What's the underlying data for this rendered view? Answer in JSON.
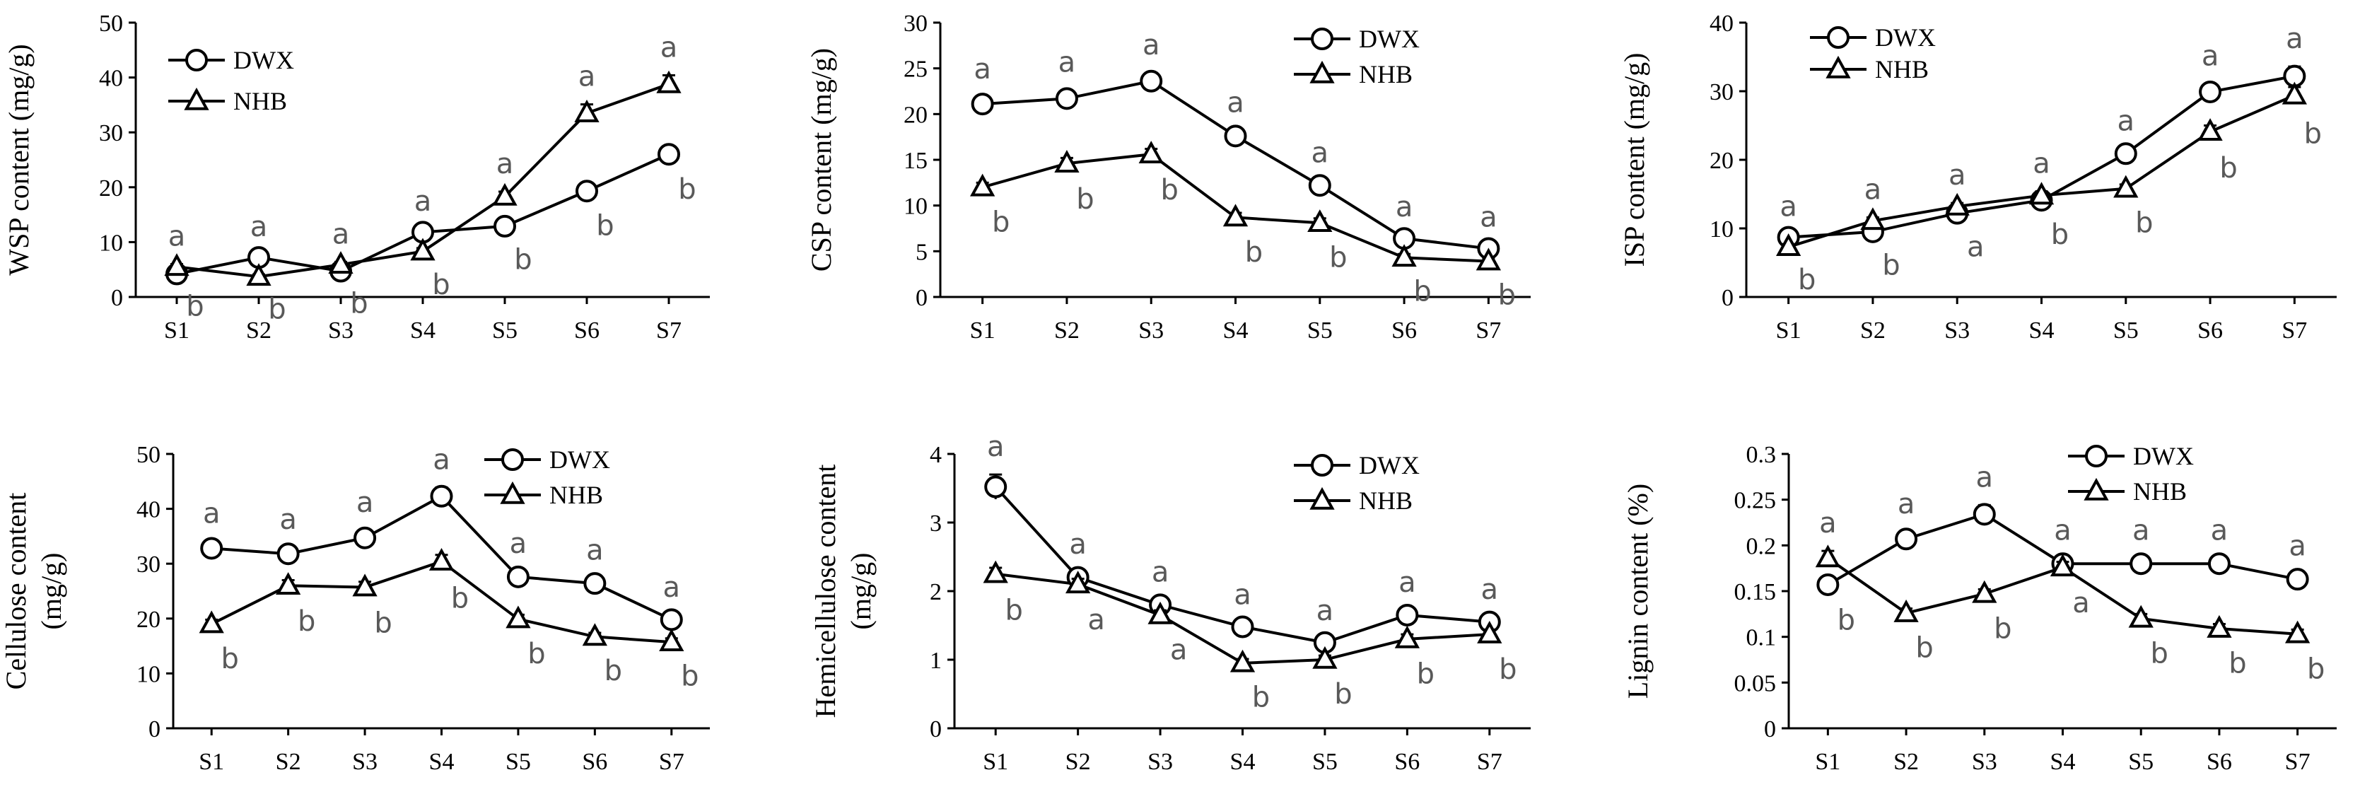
{
  "chart_data": [
    {
      "type": "line",
      "ylabel": "WSP content (mg/g)",
      "categories": [
        "S1",
        "S2",
        "S3",
        "S4",
        "S5",
        "S6",
        "S7"
      ],
      "ylim": [
        0,
        50
      ],
      "yticks": [
        "0",
        "10",
        "20",
        "30",
        "40",
        "50"
      ],
      "legend_position": "top-left",
      "series": [
        {
          "name": "DWX",
          "marker": "circle",
          "values": [
            4.2,
            7.2,
            4.7,
            11.8,
            12.9,
            19.3,
            26.0
          ],
          "errors": [
            0.4,
            0.5,
            0.4,
            0.6,
            0.6,
            0.8,
            0.9
          ],
          "sig": [
            "b",
            "a",
            "b",
            "a",
            "b",
            "b",
            "b"
          ]
        },
        {
          "name": "NHB",
          "marker": "triangle",
          "values": [
            5.5,
            3.7,
            5.9,
            8.3,
            18.3,
            33.5,
            38.8
          ],
          "errors": [
            0.5,
            0.4,
            0.5,
            0.6,
            0.9,
            1.6,
            1.6
          ],
          "sig": [
            "a",
            "b",
            "a",
            "b",
            "a",
            "a",
            "a"
          ]
        }
      ]
    },
    {
      "type": "line",
      "ylabel": "CSP content (mg/g)",
      "categories": [
        "S1",
        "S2",
        "S3",
        "S4",
        "S5",
        "S6",
        "S7"
      ],
      "ylim": [
        0,
        30
      ],
      "yticks": [
        "0",
        "5",
        "10",
        "15",
        "20",
        "25",
        "30"
      ],
      "legend_position": "top-right",
      "series": [
        {
          "name": "DWX",
          "marker": "circle",
          "values": [
            21.1,
            21.7,
            23.6,
            17.6,
            12.2,
            6.4,
            5.3
          ],
          "errors": [
            0.8,
            0.9,
            0.9,
            0.6,
            0.5,
            0.4,
            0.4
          ],
          "sig": [
            "a",
            "a",
            "a",
            "a",
            "a",
            "a",
            "a"
          ]
        },
        {
          "name": "NHB",
          "marker": "triangle",
          "values": [
            12.0,
            14.6,
            15.6,
            8.7,
            8.1,
            4.3,
            3.9
          ],
          "errors": [
            0.5,
            0.6,
            0.6,
            0.5,
            0.5,
            0.4,
            0.4
          ],
          "sig": [
            "b",
            "b",
            "b",
            "b",
            "b",
            "b",
            "b"
          ]
        }
      ]
    },
    {
      "type": "line",
      "ylabel": "ISP content (mg/g)",
      "categories": [
        "S1",
        "S2",
        "S3",
        "S4",
        "S5",
        "S6",
        "S7"
      ],
      "ylim": [
        0,
        40
      ],
      "yticks": [
        "0",
        "10",
        "20",
        "30",
        "40"
      ],
      "legend_position": "top-left",
      "series": [
        {
          "name": "DWX",
          "marker": "circle",
          "values": [
            8.7,
            9.5,
            12.2,
            14.1,
            20.9,
            29.9,
            32.2
          ],
          "errors": [
            0.4,
            0.5,
            0.5,
            0.6,
            0.7,
            1.2,
            1.4
          ],
          "sig": [
            "a",
            "b",
            "a",
            "b",
            "a",
            "a",
            "a"
          ]
        },
        {
          "name": "NHB",
          "marker": "triangle",
          "values": [
            7.3,
            11.1,
            13.2,
            14.8,
            15.8,
            24.1,
            29.4
          ],
          "errors": [
            0.4,
            0.5,
            0.5,
            0.6,
            0.6,
            0.9,
            1.2
          ],
          "sig": [
            "b",
            "a",
            "a",
            "a",
            "b",
            "b",
            "b"
          ]
        }
      ]
    },
    {
      "type": "line",
      "ylabel": "Cellulose content\n(mg/g)",
      "categories": [
        "S1",
        "S2",
        "S3",
        "S4",
        "S5",
        "S6",
        "S7"
      ],
      "ylim": [
        0,
        50
      ],
      "yticks": [
        "0",
        "10",
        "20",
        "30",
        "40",
        "50"
      ],
      "legend_position": "top-right",
      "series": [
        {
          "name": "DWX",
          "marker": "circle",
          "values": [
            32.8,
            31.8,
            34.7,
            42.3,
            27.6,
            26.4,
            19.8
          ],
          "errors": [
            1.3,
            1.2,
            1.4,
            1.6,
            1.0,
            1.0,
            0.8
          ],
          "sig": [
            "a",
            "a",
            "a",
            "a",
            "a",
            "a",
            "a"
          ]
        },
        {
          "name": "NHB",
          "marker": "triangle",
          "values": [
            19.0,
            26.0,
            25.7,
            30.4,
            19.9,
            16.7,
            15.7
          ],
          "errors": [
            0.8,
            1.0,
            1.0,
            1.2,
            0.8,
            0.7,
            0.7
          ],
          "sig": [
            "b",
            "b",
            "b",
            "b",
            "b",
            "b",
            "b"
          ]
        }
      ]
    },
    {
      "type": "line",
      "ylabel": "Hemicellulose content\n(mg/g)",
      "categories": [
        "S1",
        "S2",
        "S3",
        "S4",
        "S5",
        "S6",
        "S7"
      ],
      "ylim": [
        0,
        4
      ],
      "yticks": [
        "0",
        "1",
        "2",
        "3",
        "4"
      ],
      "legend_position": "top-right",
      "series": [
        {
          "name": "DWX",
          "marker": "circle",
          "values": [
            3.52,
            2.2,
            1.8,
            1.48,
            1.25,
            1.65,
            1.55
          ],
          "errors": [
            0.18,
            0.08,
            0.07,
            0.06,
            0.06,
            0.07,
            0.07
          ],
          "sig": [
            "a",
            "a",
            "a",
            "a",
            "a",
            "a",
            "a"
          ]
        },
        {
          "name": "NHB",
          "marker": "triangle",
          "values": [
            2.25,
            2.1,
            1.65,
            0.95,
            1.0,
            1.3,
            1.37
          ],
          "errors": [
            0.09,
            0.08,
            0.07,
            0.06,
            0.06,
            0.07,
            0.07
          ],
          "sig": [
            "b",
            "a",
            "a",
            "b",
            "b",
            "b",
            "b"
          ]
        }
      ]
    },
    {
      "type": "line",
      "ylabel": "Lignin content (%)",
      "categories": [
        "S1",
        "S2",
        "S3",
        "S4",
        "S5",
        "S6",
        "S7"
      ],
      "ylim": [
        0,
        0.3
      ],
      "yticks": [
        "0",
        "0.05",
        "0.1",
        "0.15",
        "0.2",
        "0.25",
        "0.3"
      ],
      "legend_position": "top-right",
      "series": [
        {
          "name": "DWX",
          "marker": "circle",
          "values": [
            0.157,
            0.207,
            0.234,
            0.18,
            0.18,
            0.18,
            0.163
          ],
          "errors": [
            0.006,
            0.008,
            0.01,
            0.006,
            0.006,
            0.006,
            0.006
          ],
          "sig": [
            "b",
            "a",
            "a",
            "a",
            "a",
            "a",
            "a"
          ]
        },
        {
          "name": "NHB",
          "marker": "triangle",
          "values": [
            0.186,
            0.126,
            0.147,
            0.176,
            0.12,
            0.109,
            0.103
          ],
          "errors": [
            0.008,
            0.005,
            0.005,
            0.006,
            0.005,
            0.005,
            0.005
          ],
          "sig": [
            "a",
            "b",
            "b",
            "a",
            "b",
            "b",
            "b"
          ]
        }
      ]
    }
  ]
}
